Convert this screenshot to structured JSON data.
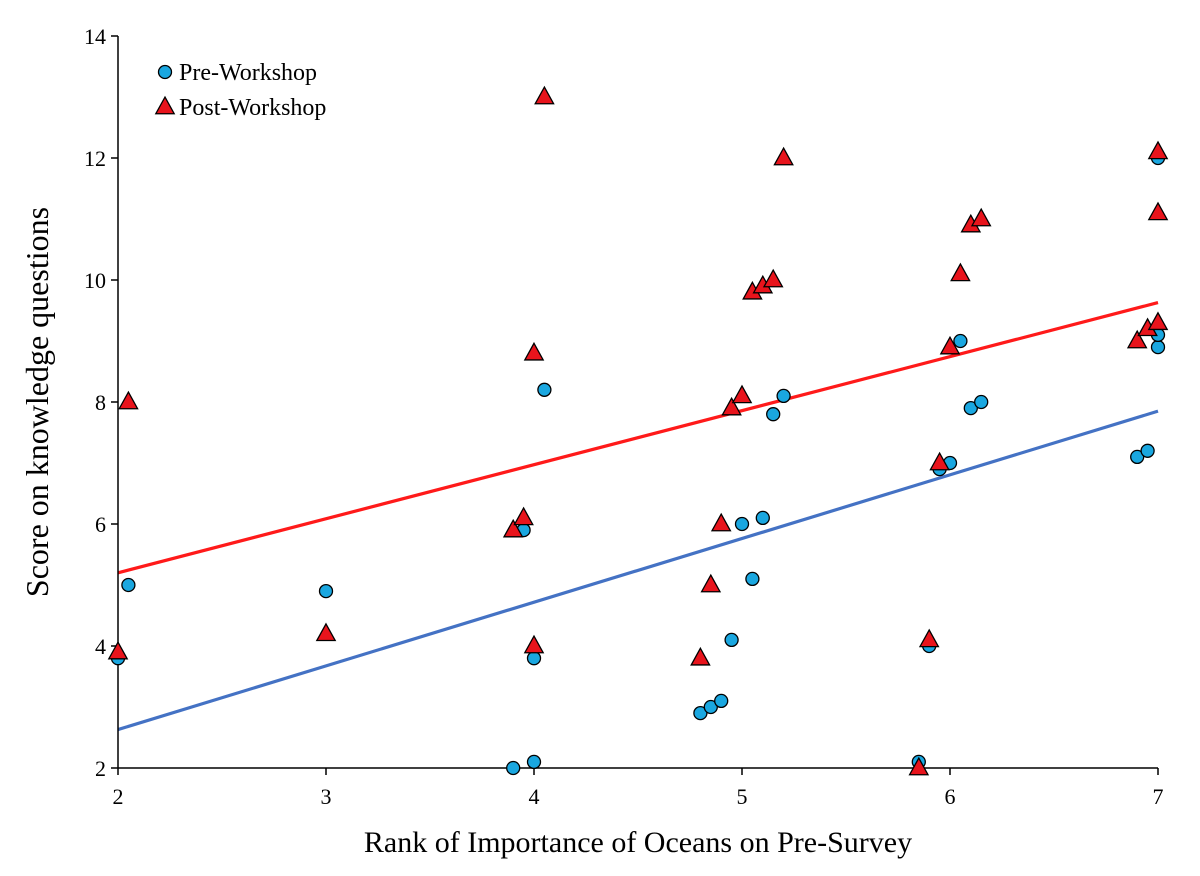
{
  "chart_data": {
    "type": "scatter",
    "title": "",
    "xlabel": "Rank of Importance of Oceans on Pre-Survey",
    "ylabel": "Score on knowledge questions",
    "xlim": [
      2,
      7
    ],
    "ylim": [
      2,
      14
    ],
    "x_ticks": [
      "2",
      "3",
      "4",
      "5",
      "6",
      "7"
    ],
    "y_ticks": [
      "2",
      "4",
      "6",
      "8",
      "10",
      "12",
      "14"
    ],
    "legend_position": "top-left",
    "grid": false,
    "series": [
      {
        "name": "Pre-Workshop",
        "marker": "circle",
        "color": "#1aa7e0",
        "trendline": {
          "color": "#4472c4",
          "start": [
            2,
            2.63
          ],
          "end": [
            7,
            7.85
          ]
        },
        "points": [
          [
            2.0,
            3.8
          ],
          [
            2.05,
            5.0
          ],
          [
            3.0,
            4.9
          ],
          [
            3.9,
            2.0
          ],
          [
            3.95,
            5.9
          ],
          [
            4.0,
            3.8
          ],
          [
            4.0,
            2.1
          ],
          [
            4.05,
            8.2
          ],
          [
            4.8,
            2.9
          ],
          [
            4.85,
            3.0
          ],
          [
            4.9,
            3.1
          ],
          [
            4.95,
            4.1
          ],
          [
            5.0,
            6.0
          ],
          [
            5.05,
            5.1
          ],
          [
            5.1,
            6.1
          ],
          [
            5.15,
            7.8
          ],
          [
            5.2,
            8.1
          ],
          [
            5.85,
            2.1
          ],
          [
            5.9,
            4.0
          ],
          [
            5.95,
            6.9
          ],
          [
            6.0,
            7.0
          ],
          [
            6.05,
            9.0
          ],
          [
            6.1,
            7.9
          ],
          [
            6.15,
            8.0
          ],
          [
            6.9,
            7.1
          ],
          [
            6.95,
            7.2
          ],
          [
            7.0,
            8.9
          ],
          [
            7.0,
            9.1
          ],
          [
            7.0,
            12.0
          ]
        ]
      },
      {
        "name": "Post-Workshop",
        "marker": "triangle",
        "color": "#e8141c",
        "trendline": {
          "color": "#ff1a1a",
          "start": [
            2,
            5.2
          ],
          "end": [
            7,
            9.63
          ]
        },
        "points": [
          [
            2.0,
            3.9
          ],
          [
            2.05,
            8.0
          ],
          [
            3.0,
            4.2
          ],
          [
            3.9,
            5.9
          ],
          [
            3.95,
            6.1
          ],
          [
            4.0,
            4.0
          ],
          [
            4.0,
            8.8
          ],
          [
            4.05,
            13.0
          ],
          [
            4.8,
            3.8
          ],
          [
            4.85,
            5.0
          ],
          [
            4.9,
            6.0
          ],
          [
            4.95,
            7.9
          ],
          [
            5.0,
            8.1
          ],
          [
            5.05,
            9.8
          ],
          [
            5.1,
            9.9
          ],
          [
            5.15,
            10.0
          ],
          [
            5.2,
            12.0
          ],
          [
            5.85,
            2.0
          ],
          [
            5.9,
            4.1
          ],
          [
            5.95,
            7.0
          ],
          [
            6.0,
            8.9
          ],
          [
            6.05,
            10.1
          ],
          [
            6.1,
            10.9
          ],
          [
            6.15,
            11.0
          ],
          [
            6.9,
            9.0
          ],
          [
            6.95,
            9.2
          ],
          [
            7.0,
            9.3
          ],
          [
            7.0,
            11.1
          ],
          [
            7.0,
            12.1
          ]
        ]
      }
    ]
  }
}
